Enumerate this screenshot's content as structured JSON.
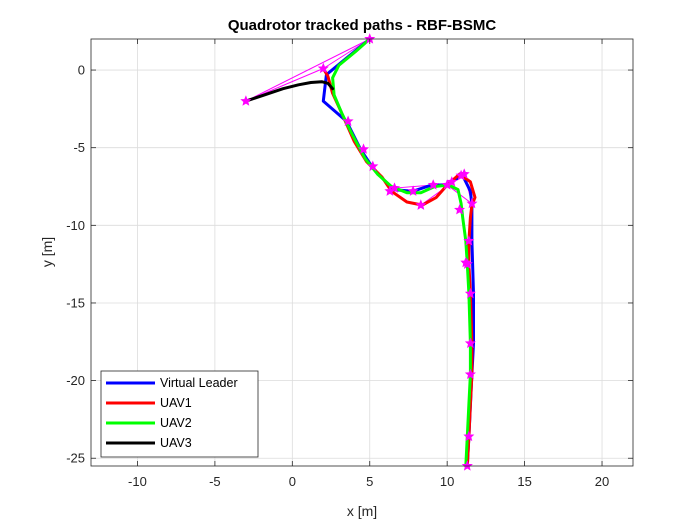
{
  "chart_data": {
    "type": "line",
    "title": "Quadrotor tracked paths - RBF-BSMC",
    "xlabel": "x [m]",
    "ylabel": "y [m]",
    "xlim": [
      -13,
      22
    ],
    "ylim": [
      -25.5,
      2
    ],
    "xticks": [
      "-10",
      "-5",
      "0",
      "5",
      "10",
      "15",
      "20"
    ],
    "yticks": [
      "0",
      "-5",
      "-10",
      "-15",
      "-20",
      "-25"
    ],
    "grid": true,
    "legend_position": "bottom-left",
    "series": [
      {
        "name": "Virtual Leader",
        "color": "#0000ff",
        "points": [
          [
            5,
            2
          ],
          [
            2.2,
            -0.3
          ],
          [
            2.0,
            -2
          ],
          [
            3.5,
            -3.3
          ],
          [
            4.4,
            -5.1
          ],
          [
            5.2,
            -6.3
          ],
          [
            6.5,
            -7.7
          ],
          [
            7.8,
            -7.8
          ],
          [
            9.0,
            -7.4
          ],
          [
            9.9,
            -7.4
          ],
          [
            11.0,
            -6.8
          ],
          [
            11.5,
            -7.8
          ],
          [
            11.6,
            -8.7
          ],
          [
            11.6,
            -11.0
          ],
          [
            11.7,
            -14.4
          ],
          [
            11.7,
            -17.6
          ],
          [
            11.6,
            -19.6
          ],
          [
            11.4,
            -23.6
          ],
          [
            11.3,
            -25.5
          ]
        ]
      },
      {
        "name": "UAV1",
        "color": "#ff0000",
        "points": [
          [
            2.0,
            0.1
          ],
          [
            2.3,
            -0.4
          ],
          [
            2.6,
            -1.5
          ],
          [
            3.2,
            -2.8
          ],
          [
            4.0,
            -4.6
          ],
          [
            4.8,
            -5.9
          ],
          [
            5.8,
            -6.9
          ],
          [
            6.4,
            -7.8
          ],
          [
            7.4,
            -8.5
          ],
          [
            8.4,
            -8.7
          ],
          [
            9.3,
            -8.2
          ],
          [
            10.0,
            -7.4
          ],
          [
            10.8,
            -6.7
          ],
          [
            11.5,
            -7.2
          ],
          [
            11.8,
            -8.2
          ],
          [
            11.6,
            -8.7
          ],
          [
            11.5,
            -9.5
          ],
          [
            11.4,
            -11.0
          ],
          [
            11.4,
            -12.5
          ],
          [
            11.5,
            -14.4
          ],
          [
            11.6,
            -17.6
          ],
          [
            11.6,
            -19.6
          ],
          [
            11.5,
            -21.5
          ],
          [
            11.4,
            -23.6
          ],
          [
            11.3,
            -25.5
          ]
        ]
      },
      {
        "name": "UAV2",
        "color": "#00ff00",
        "points": [
          [
            5.0,
            2.0
          ],
          [
            4.1,
            1.2
          ],
          [
            3.0,
            0.3
          ],
          [
            2.6,
            -0.5
          ],
          [
            2.7,
            -1.6
          ],
          [
            3.2,
            -2.8
          ],
          [
            3.9,
            -4.2
          ],
          [
            4.7,
            -5.7
          ],
          [
            5.5,
            -6.7
          ],
          [
            6.4,
            -7.5
          ],
          [
            7.4,
            -7.9
          ],
          [
            8.3,
            -7.9
          ],
          [
            9.2,
            -7.5
          ],
          [
            10.1,
            -7.4
          ],
          [
            10.7,
            -7.7
          ],
          [
            10.9,
            -8.6
          ],
          [
            11.0,
            -9.5
          ],
          [
            11.2,
            -11.0
          ],
          [
            11.3,
            -12.5
          ],
          [
            11.4,
            -14.4
          ],
          [
            11.5,
            -17.6
          ],
          [
            11.5,
            -19.6
          ],
          [
            11.4,
            -21.5
          ],
          [
            11.3,
            -23.6
          ],
          [
            11.2,
            -25.5
          ]
        ]
      },
      {
        "name": "UAV3",
        "color": "#000000",
        "points": [
          [
            -3.0,
            -2.0
          ],
          [
            -1.8,
            -1.6
          ],
          [
            -0.6,
            -1.2
          ],
          [
            0.4,
            -0.95
          ],
          [
            1.2,
            -0.8
          ],
          [
            1.9,
            -0.75
          ],
          [
            2.3,
            -0.85
          ],
          [
            2.6,
            -1.2
          ]
        ]
      }
    ],
    "markers": [
      [
        5,
        2
      ],
      [
        2.0,
        0.1
      ],
      [
        -3,
        -2
      ],
      [
        3.6,
        -3.3
      ],
      [
        4.6,
        -5.1
      ],
      [
        5.2,
        -6.2
      ],
      [
        6.3,
        -7.8
      ],
      [
        6.6,
        -7.6
      ],
      [
        7.8,
        -7.8
      ],
      [
        8.3,
        -8.7
      ],
      [
        9.1,
        -7.4
      ],
      [
        10.0,
        -7.4
      ],
      [
        10.3,
        -7.2
      ],
      [
        10.9,
        -6.8
      ],
      [
        11.1,
        -6.7
      ],
      [
        11.6,
        -8.6
      ],
      [
        10.8,
        -9.0
      ],
      [
        11.4,
        -11.0
      ],
      [
        11.2,
        -12.4
      ],
      [
        11.3,
        -12.5
      ],
      [
        11.5,
        -14.4
      ],
      [
        11.5,
        -17.6
      ],
      [
        11.5,
        -19.6
      ],
      [
        11.4,
        -23.6
      ],
      [
        11.3,
        -25.5
      ]
    ],
    "connections": [
      [
        [
          -3,
          -2
        ],
        [
          5,
          2
        ]
      ],
      [
        [
          -3,
          -2
        ],
        [
          2.0,
          0.1
        ]
      ],
      [
        [
          2.0,
          0.1
        ],
        [
          5,
          2
        ]
      ],
      [
        [
          8.3,
          -8.7
        ],
        [
          11.1,
          -6.7
        ]
      ],
      [
        [
          11.1,
          -6.7
        ],
        [
          11.6,
          -8.6
        ]
      ],
      [
        [
          10.0,
          -7.4
        ],
        [
          11.6,
          -8.6
        ]
      ],
      [
        [
          6.6,
          -7.6
        ],
        [
          9.1,
          -7.4
        ]
      ]
    ],
    "marker_color": "#ff00ff",
    "connection_color": "#ff00ff"
  }
}
